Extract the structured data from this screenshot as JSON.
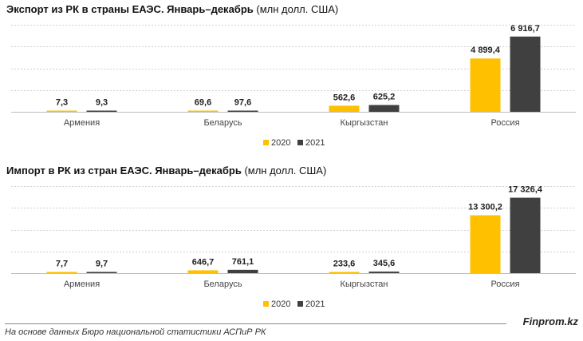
{
  "chart_data": [
    {
      "type": "bar",
      "title": "Экспорт из РК в страны ЕАЭС. Январь–декабрь",
      "units": "(млн долл. США)",
      "categories": [
        "Армения",
        "Беларусь",
        "Кыргызстан",
        "Россия"
      ],
      "series": [
        {
          "name": "2020",
          "values": [
            7.3,
            69.6,
            562.6,
            4899.4
          ],
          "labels": [
            "7,3",
            "69,6",
            "562,6",
            "4 899,4"
          ]
        },
        {
          "name": "2021",
          "values": [
            9.3,
            97.6,
            625.2,
            6916.7
          ],
          "labels": [
            "9,3",
            "97,6",
            "625,2",
            "6 916,7"
          ]
        }
      ],
      "ylim": [
        0,
        8000
      ],
      "grid": true,
      "legend_position": "bottom-center"
    },
    {
      "type": "bar",
      "title": "Импорт в РК из стран ЕАЭС. Январь–декабрь",
      "units": "(млн долл. США)",
      "categories": [
        "Армения",
        "Беларусь",
        "Кыргызстан",
        "Россия"
      ],
      "series": [
        {
          "name": "2020",
          "values": [
            7.7,
            646.7,
            233.6,
            13300.2
          ],
          "labels": [
            "7,7",
            "646,7",
            "233,6",
            "13 300,2"
          ]
        },
        {
          "name": "2021",
          "values": [
            9.7,
            761.1,
            345.6,
            17326.4
          ],
          "labels": [
            "9,7",
            "761,1",
            "345,6",
            "17 326,4"
          ]
        }
      ],
      "ylim": [
        0,
        20000
      ],
      "grid": true,
      "legend_position": "bottom-center"
    }
  ],
  "colors": {
    "2020": "#FFC000",
    "2021": "#404040",
    "grid": "#d0d0d0",
    "axis": "#bfbfbf"
  },
  "source": "На основе данных Бюро национальной статистики АСПиР РК",
  "brand": "Finprom.kz"
}
